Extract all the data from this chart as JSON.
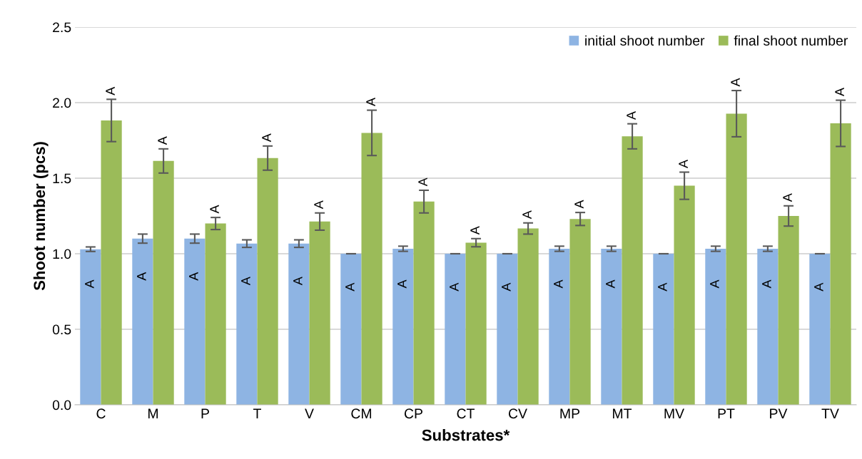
{
  "chart_data": {
    "type": "bar",
    "xlabel": "Substrates*",
    "ylabel": "Shoot number (pcs)",
    "categories": [
      "C",
      "M",
      "P",
      "T",
      "V",
      "CM",
      "CP",
      "CT",
      "CV",
      "MP",
      "MT",
      "MV",
      "PT",
      "PV",
      "TV"
    ],
    "series": [
      {
        "name": "initial shoot number",
        "color": "#8eb4e3",
        "values": [
          1.03,
          1.1,
          1.1,
          1.067,
          1.067,
          1.0,
          1.033,
          1.0,
          1.0,
          1.033,
          1.033,
          1.0,
          1.033,
          1.033,
          1.0
        ],
        "errors": [
          0.015,
          0.03,
          0.03,
          0.025,
          0.025,
          0,
          0.017,
          0,
          0,
          0.017,
          0.017,
          0,
          0.017,
          0.017,
          0
        ]
      },
      {
        "name": "final shoot number",
        "color": "#9bbb59",
        "values": [
          1.882,
          1.614,
          1.2,
          1.633,
          1.213,
          1.8,
          1.345,
          1.073,
          1.167,
          1.23,
          1.777,
          1.45,
          1.927,
          1.25,
          1.863
        ],
        "errors": [
          0.14,
          0.08,
          0.04,
          0.08,
          0.057,
          0.15,
          0.075,
          0.027,
          0.037,
          0.043,
          0.083,
          0.09,
          0.153,
          0.067,
          0.153
        ]
      }
    ],
    "annotations": [
      {
        "text": "A",
        "x": "C",
        "y": 0.8
      },
      {
        "text": "A",
        "x": "M",
        "y": 0.85
      },
      {
        "text": "A",
        "x": "P",
        "y": 0.85
      },
      {
        "text": "A",
        "x": "T",
        "y": 0.82
      },
      {
        "text": "A",
        "x": "V",
        "y": 0.82
      },
      {
        "text": "A",
        "x": "CM",
        "y": 0.78
      },
      {
        "text": "A",
        "x": "CP",
        "y": 0.8
      },
      {
        "text": "A",
        "x": "CT",
        "y": 0.78
      },
      {
        "text": "A",
        "x": "CV",
        "y": 0.78
      },
      {
        "text": "A",
        "x": "MP",
        "y": 0.8
      },
      {
        "text": "A",
        "x": "MT",
        "y": 0.8
      },
      {
        "text": "A",
        "x": "MV",
        "y": 0.78
      },
      {
        "text": "A",
        "x": "PT",
        "y": 0.8
      },
      {
        "text": "A",
        "x": "PV",
        "y": 0.8
      },
      {
        "text": "A",
        "x": "TV",
        "y": 0.78
      },
      {
        "text": "A",
        "x": "C",
        "y": 1.882
      },
      {
        "text": "A",
        "x": "M",
        "y": 1.614
      },
      {
        "text": "A",
        "x": "P",
        "y": 1.2
      },
      {
        "text": "A",
        "x": "T",
        "y": 1.633
      },
      {
        "text": "A",
        "x": "V",
        "y": 1.213
      },
      {
        "text": "A",
        "x": "CM",
        "y": 1.8
      },
      {
        "text": "A",
        "x": "CP",
        "y": 1.345
      },
      {
        "text": "A",
        "x": "CT",
        "y": 1.073
      },
      {
        "text": "A",
        "x": "CV",
        "y": 1.167
      },
      {
        "text": "A",
        "x": "MP",
        "y": 1.23
      },
      {
        "text": "A",
        "x": "MT",
        "y": 1.777
      },
      {
        "text": "A",
        "x": "MV",
        "y": 1.45
      },
      {
        "text": "A",
        "x": "PT",
        "y": 1.927
      },
      {
        "text": "A",
        "x": "PV",
        "y": 1.25
      },
      {
        "text": "A",
        "x": "TV",
        "y": 1.863
      }
    ],
    "ylim": [
      0,
      2.5
    ],
    "yticks": [
      {
        "value": 0,
        "label": "0.0"
      },
      {
        "value": 0.5,
        "label": "0.5"
      },
      {
        "value": 1,
        "label": "1.0"
      },
      {
        "value": 1.5,
        "label": "1.5"
      },
      {
        "value": 2,
        "label": "2.0"
      },
      {
        "value": 2.5,
        "label": "2.5"
      }
    ],
    "grid": "y",
    "legend": "top right"
  }
}
